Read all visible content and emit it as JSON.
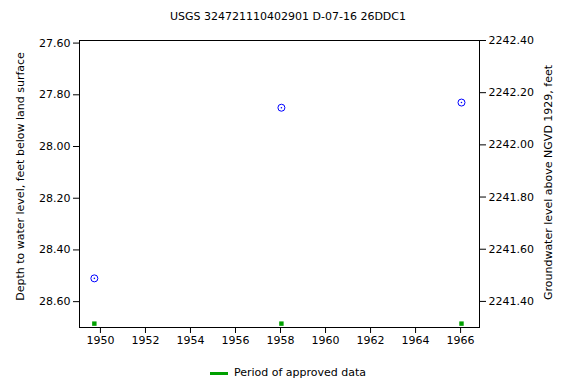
{
  "chart_data": {
    "type": "scatter",
    "title": "USGS 324721110402901 D-07-16 26DDC1",
    "y_label": "Depth to water level, feet below land surface",
    "y2_label": "Groundwater level above NGVD 1929, feet",
    "x": [
      1949.73,
      1958.04,
      1966.04
    ],
    "series": [
      {
        "color": "#0000ff",
        "marker": "circle",
        "values": [
          28.51,
          27.85,
          27.83
        ]
      },
      {
        "name": "Period of approved data",
        "color": "#00a000",
        "marker": "square",
        "values": [
          28.685,
          28.685,
          28.685
        ]
      }
    ],
    "xlim": [
      1949.07,
      1966.84
    ],
    "xticks": [
      1950,
      1952,
      1954,
      1956,
      1958,
      1960,
      1962,
      1964,
      1966
    ],
    "ylim": [
      28.7,
      27.59
    ],
    "yticks": [
      {
        "value": 27.6,
        "label": "27.60"
      },
      {
        "value": 27.8,
        "label": "27.80"
      },
      {
        "value": 28.0,
        "label": "28.00"
      },
      {
        "value": 28.2,
        "label": "28.20"
      },
      {
        "value": 28.4,
        "label": "28.40"
      },
      {
        "value": 28.6,
        "label": "28.60"
      }
    ],
    "y2lim": [
      2241.3,
      2242.4
    ],
    "y2ticks": [
      {
        "value": 2241.4,
        "label": "2241.40"
      },
      {
        "value": 2241.6,
        "label": "2241.60"
      },
      {
        "value": 2241.8,
        "label": "2241.80"
      },
      {
        "value": 2242.0,
        "label": "2242.00"
      },
      {
        "value": 2242.2,
        "label": "2242.20"
      },
      {
        "value": 2242.4,
        "label": "2242.40"
      }
    ],
    "grid": false,
    "legend": "bottom"
  }
}
